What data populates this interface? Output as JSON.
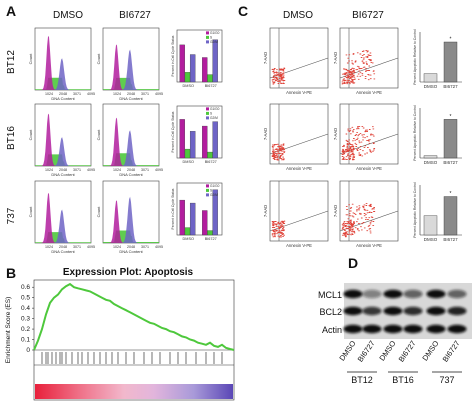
{
  "panels": {
    "a": {
      "letter": "A",
      "conditions": [
        "DMSO",
        "BI6727"
      ],
      "rows": [
        "BT12",
        "BT16",
        "737"
      ],
      "x_ticks": [
        "1024",
        "2048",
        "3071",
        "4095"
      ],
      "x_label": "DNA Content",
      "y_label": "Count",
      "bar_y_label": "Percent in Cell Cycle Status",
      "legend": [
        "G1/G0",
        "S",
        "G2/M"
      ],
      "bar_categories": [
        "DMSO",
        "BI6727"
      ],
      "colors": {
        "g1": "#b21d9e",
        "s": "#4ec83c",
        "g2m": "#6e64c6"
      }
    },
    "b": {
      "letter": "B",
      "title": "Expression Plot: Apoptosis",
      "y_label": "Enrichment Score (ES)",
      "y_ticks": [
        "0",
        "0.1",
        "0.2",
        "0.3",
        "0.4",
        "0.5",
        "0.6"
      ],
      "line_color": "#4ec83c"
    },
    "c": {
      "letter": "C",
      "conditions": [
        "DMSO",
        "BI6727"
      ],
      "x_label": "Annexin V-PE",
      "y_label": "7-AAD",
      "bar_y_label": "Percent Apoptotic Relative to Control",
      "bar_categories": [
        "DMSO",
        "BI6727"
      ],
      "asterisk": "*"
    },
    "d": {
      "letter": "D",
      "bands": [
        "MCL1",
        "BCL2",
        "Actin"
      ],
      "lanes": [
        "DMSO",
        "BI6727",
        "DMSO",
        "BI6727",
        "DMSO",
        "BI6727"
      ],
      "groups": [
        "BT12",
        "BT16",
        "737"
      ]
    }
  },
  "chart_data": [
    {
      "type": "bar",
      "panel": "A-BT12",
      "categories": [
        "DMSO",
        "BI6727"
      ],
      "series": [
        {
          "name": "G1/G0",
          "values": [
            50,
            33
          ]
        },
        {
          "name": "S",
          "values": [
            13,
            10
          ]
        },
        {
          "name": "G2/M",
          "values": [
            37,
            57
          ]
        }
      ],
      "ylim": [
        0,
        70
      ]
    },
    {
      "type": "bar",
      "panel": "A-BT16",
      "categories": [
        "DMSO",
        "BI6727"
      ],
      "series": [
        {
          "name": "G1/G0",
          "values": [
            52,
            43
          ]
        },
        {
          "name": "S",
          "values": [
            12,
            8
          ]
        },
        {
          "name": "G2/M",
          "values": [
            36,
            49
          ]
        }
      ],
      "ylim": [
        0,
        70
      ]
    },
    {
      "type": "bar",
      "panel": "A-737",
      "categories": [
        "DMSO",
        "BI6727"
      ],
      "series": [
        {
          "name": "G1/G0",
          "values": [
            47,
            33
          ]
        },
        {
          "name": "S",
          "values": [
            10,
            6
          ]
        },
        {
          "name": "G2/M",
          "values": [
            43,
            61
          ]
        }
      ],
      "ylim": [
        0,
        70
      ]
    },
    {
      "type": "bar",
      "panel": "C-BT12",
      "categories": [
        "DMSO",
        "BI6727"
      ],
      "values": [
        100,
        480
      ],
      "ylim": [
        0,
        600
      ]
    },
    {
      "type": "bar",
      "panel": "C-BT16",
      "categories": [
        "DMSO",
        "BI6727"
      ],
      "values": [
        100,
        1700
      ],
      "ylim": [
        0,
        2200
      ]
    },
    {
      "type": "bar",
      "panel": "C-737",
      "categories": [
        "DMSO",
        "BI6727"
      ],
      "values": [
        100,
        200
      ],
      "ylim": [
        0,
        260
      ]
    },
    {
      "type": "line",
      "panel": "B",
      "title": "Expression Plot: Apoptosis",
      "ylabel": "Enrichment Score (ES)",
      "x": [
        0,
        2,
        4,
        6,
        8,
        10,
        12,
        14,
        16,
        18,
        20,
        22,
        24,
        26,
        28,
        30,
        32,
        34,
        36,
        38,
        40,
        42,
        44,
        46,
        48,
        50,
        52,
        54,
        56,
        58,
        60,
        62,
        64,
        66,
        68,
        70,
        72,
        74,
        76,
        78,
        80,
        82,
        84,
        86,
        88,
        90,
        92,
        94,
        96,
        98,
        100
      ],
      "values": [
        0.0,
        0.09,
        0.2,
        0.34,
        0.45,
        0.5,
        0.53,
        0.58,
        0.61,
        0.63,
        0.6,
        0.59,
        0.58,
        0.57,
        0.56,
        0.54,
        0.52,
        0.5,
        0.48,
        0.47,
        0.44,
        0.42,
        0.4,
        0.38,
        0.36,
        0.34,
        0.32,
        0.3,
        0.28,
        0.26,
        0.25,
        0.23,
        0.21,
        0.2,
        0.18,
        0.17,
        0.15,
        0.13,
        0.12,
        0.1,
        0.09,
        0.07,
        0.06,
        0.05,
        0.07,
        0.04,
        0.03,
        0.05,
        0.02,
        0.01,
        0.0
      ],
      "ylim": [
        0,
        0.65
      ]
    }
  ]
}
